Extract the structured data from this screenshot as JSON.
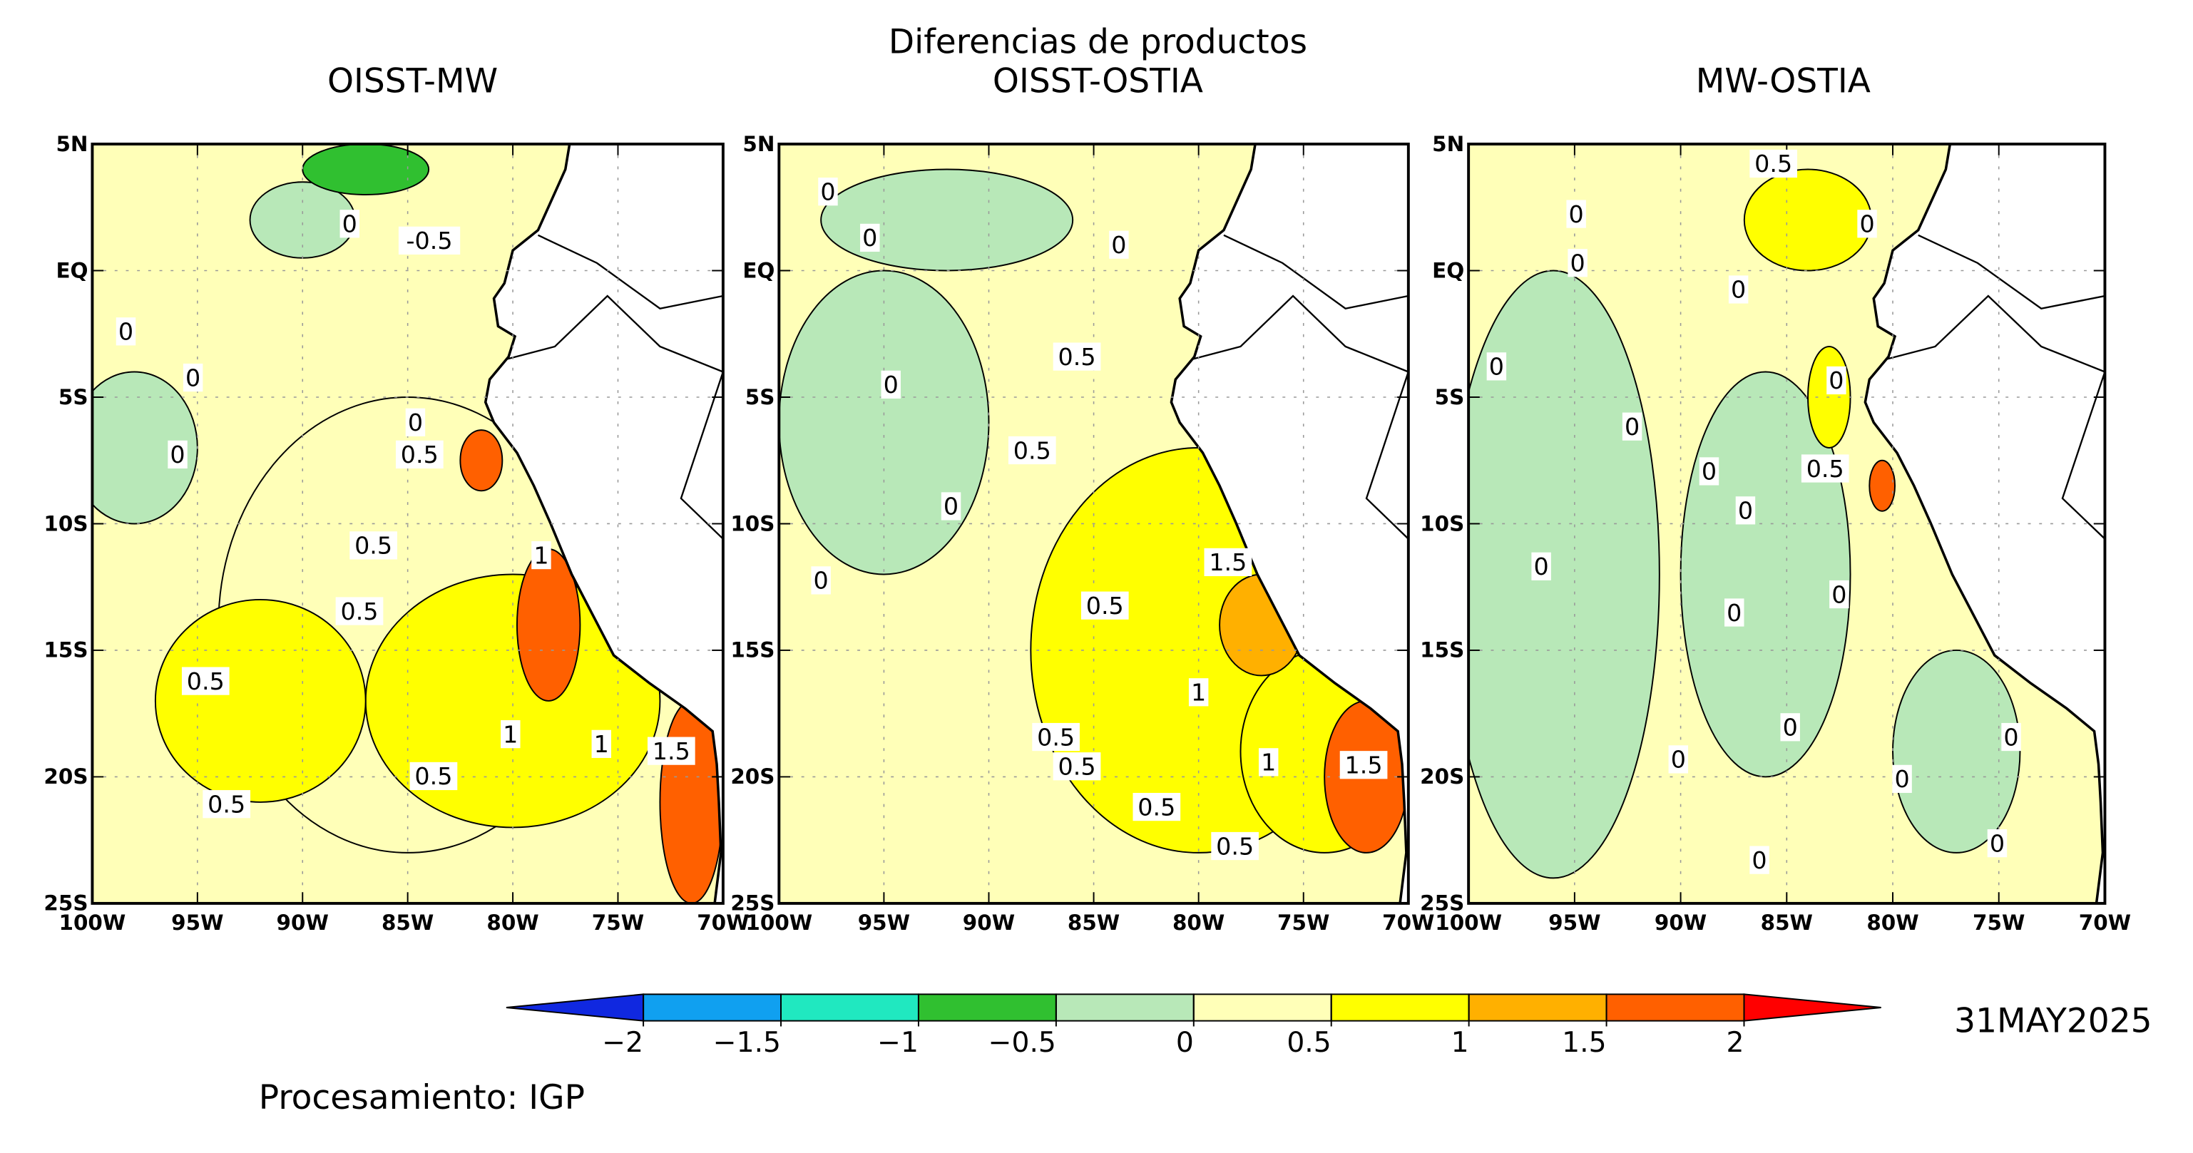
{
  "title": "Diferencias de productos",
  "panels": [
    {
      "title": "OISST-MW",
      "contour_labels": [
        0,
        -0.5,
        0,
        0,
        0,
        0,
        0.5,
        0.5,
        1,
        0.5,
        0.5,
        1,
        0.5,
        1,
        1.5,
        0.5
      ]
    },
    {
      "title": "OISST-OSTIA",
      "contour_labels": [
        0,
        0,
        0,
        0.5,
        0,
        0.5,
        0,
        0,
        1.5,
        0.5,
        1,
        0.5,
        0.5,
        1,
        1.5,
        0.5,
        0.5
      ]
    },
    {
      "title": "MW-OSTIA",
      "contour_labels": [
        0.5,
        0,
        0,
        0,
        0,
        0,
        0,
        0,
        0,
        0.5,
        0,
        0,
        0,
        0,
        0,
        0,
        0,
        0,
        0,
        0
      ]
    }
  ],
  "lat_labels": [
    "5N",
    "EQ",
    "5S",
    "10S",
    "15S",
    "20S",
    "25S"
  ],
  "lon_labels": [
    "100W",
    "95W",
    "90W",
    "85W",
    "80W",
    "75W",
    "70W"
  ],
  "colorbar": {
    "ticks": [
      {
        "value": -2,
        "label": "−2"
      },
      {
        "value": -1.5,
        "label": "−1.5"
      },
      {
        "value": -1,
        "label": "−1"
      },
      {
        "value": -0.5,
        "label": "−0.5"
      },
      0,
      0.5,
      1,
      1.5,
      2
    ],
    "colors": [
      "#1028e0",
      "#10a0f0",
      "#20e8c0",
      "#30c030",
      "#b8e8b8",
      "#ffffb8",
      "#ffff00",
      "#ffb000",
      "#ff6000",
      "#ff0000"
    ]
  },
  "date": "31MAY2025",
  "credit": "Procesamiento: IGP"
}
